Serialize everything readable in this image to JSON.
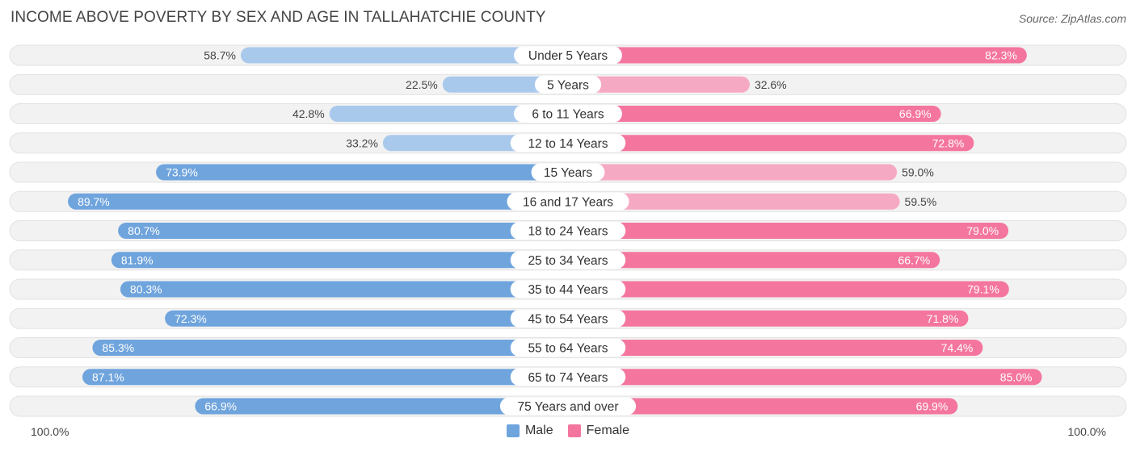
{
  "title": "INCOME ABOVE POVERTY BY SEX AND AGE IN TALLAHATCHIE COUNTY",
  "source": "Source: ZipAtlas.com",
  "colors": {
    "male": "#6fa4dd",
    "female": "#f4769e",
    "male_light": "#a9c9ec",
    "female_light": "#f6a9c3",
    "row_bg": "#f2f2f2"
  },
  "legend": {
    "male": "Male",
    "female": "Female"
  },
  "axis": {
    "left_label": "100.0%",
    "right_label": "100.0%"
  },
  "chart_data": {
    "type": "bar",
    "orientation": "horizontal-diverging",
    "title": "INCOME ABOVE POVERTY BY SEX AND AGE IN TALLAHATCHIE COUNTY",
    "categories": [
      "Under 5 Years",
      "5 Years",
      "6 to 11 Years",
      "12 to 14 Years",
      "15 Years",
      "16 and 17 Years",
      "18 to 24 Years",
      "25 to 34 Years",
      "35 to 44 Years",
      "45 to 54 Years",
      "55 to 64 Years",
      "65 to 74 Years",
      "75 Years and over"
    ],
    "series": [
      {
        "name": "Male",
        "values": [
          58.7,
          22.5,
          42.8,
          33.2,
          73.9,
          89.7,
          80.7,
          81.9,
          80.3,
          72.3,
          85.3,
          87.1,
          66.9
        ]
      },
      {
        "name": "Female",
        "values": [
          82.3,
          32.6,
          66.9,
          72.8,
          59.0,
          59.5,
          79.0,
          66.7,
          79.1,
          71.8,
          74.4,
          85.0,
          69.9
        ]
      }
    ],
    "value_labels": {
      "male": [
        "58.7%",
        "22.5%",
        "42.8%",
        "33.2%",
        "73.9%",
        "89.7%",
        "80.7%",
        "81.9%",
        "80.3%",
        "72.3%",
        "85.3%",
        "87.1%",
        "66.9%"
      ],
      "female": [
        "82.3%",
        "32.6%",
        "66.9%",
        "72.8%",
        "59.0%",
        "59.5%",
        "79.0%",
        "66.7%",
        "79.1%",
        "71.8%",
        "74.4%",
        "85.0%",
        "69.9%"
      ]
    },
    "xlim": [
      0,
      100
    ],
    "legend_position": "bottom-center"
  }
}
